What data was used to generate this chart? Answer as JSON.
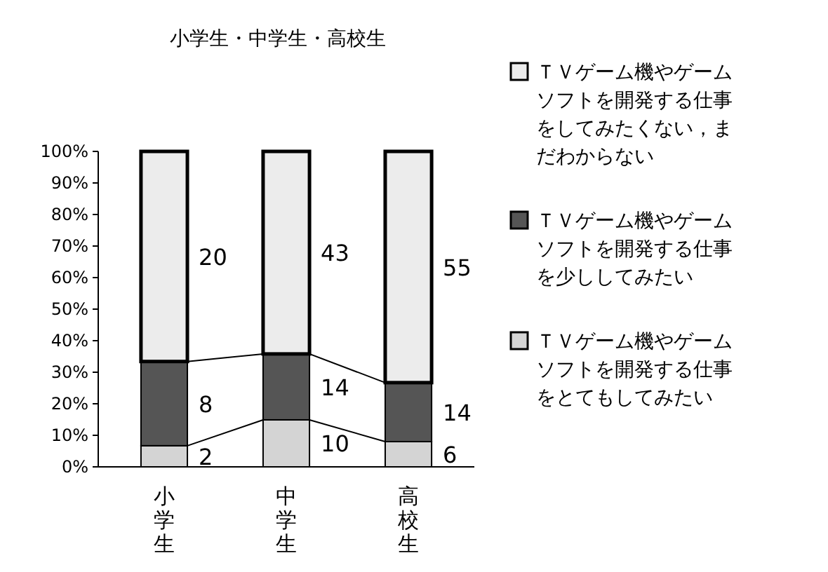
{
  "chart_data": {
    "type": "bar",
    "stacked": true,
    "title": "小学生・中学生・高校生",
    "categories": [
      "小学生",
      "中学生",
      "高校生"
    ],
    "series": [
      {
        "name": "ＴＶゲーム機やゲームソフトを開発する仕事をとてもしてみたい",
        "color": "#d4d4d4",
        "values": [
          6.7,
          14.9,
          8.0
        ]
      },
      {
        "name": "ＴＶゲーム機やゲームソフトを開発する仕事を少ししてみたい",
        "color": "#555555",
        "values": [
          26.7,
          20.9,
          18.7
        ]
      },
      {
        "name": "ＴＶゲーム機やゲームソフトを開発する仕事をしてみたくない，まだわからない",
        "color": "#ececec",
        "values": [
          66.6,
          64.2,
          73.3
        ]
      }
    ],
    "annotations": [
      {
        "text": "2",
        "x": "小学生",
        "y": 6.7
      },
      {
        "text": "8",
        "x": "小学生",
        "y": 33.4
      },
      "20",
      {
        "text": "10",
        "x": "中学生",
        "y": 14.9
      },
      {
        "text": "14",
        "x": "中学生",
        "y": 35.8
      },
      "43",
      {
        "text": "6",
        "x": "高校生",
        "y": 8.0
      },
      {
        "text": "14",
        "x": "高校生",
        "y": 26.7
      },
      "55"
    ],
    "ylim": [
      0,
      100
    ],
    "yticks": [
      {
        "value": 0,
        "label": "0%"
      },
      {
        "value": 10,
        "label": "10%"
      },
      {
        "value": 20,
        "label": "20%"
      },
      {
        "value": 30,
        "label": "30%"
      },
      {
        "value": 40,
        "label": "40%"
      },
      {
        "value": 50,
        "label": "50%"
      },
      {
        "value": 60,
        "label": "60%"
      },
      {
        "value": 70,
        "label": "70%"
      },
      {
        "value": 80,
        "label": "80%"
      },
      {
        "value": 90,
        "label": "90%"
      },
      {
        "value": 100,
        "label": "100%"
      }
    ],
    "grid": false,
    "legend": "right"
  }
}
